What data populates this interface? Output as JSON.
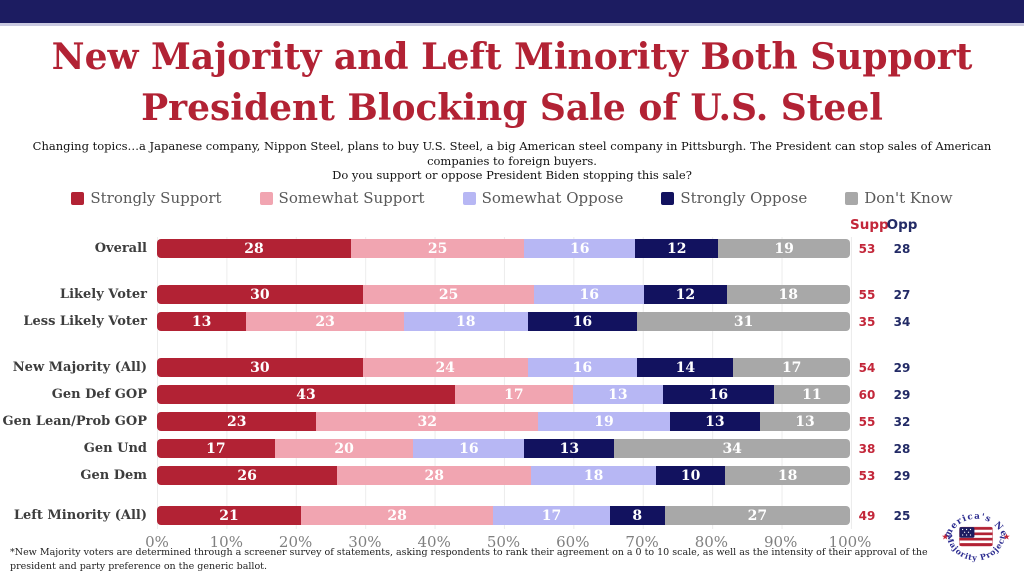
{
  "page": {
    "title_line1": "New Majority and Left Minority Both Support",
    "title_line2": "President Blocking Sale of U.S. Steel",
    "subtitle_line1": "Changing topics…a Japanese company, Nippon Steel, plans to buy U.S. Steel, a big American steel company in Pittsburgh. The President can stop sales of American companies to foreign buyers.",
    "subtitle_line2": "Do you support or oppose President Biden stopping this sale?",
    "footnote": "*New Majority voters are determined through a screener survey of statements, asking respondents to rank their agreement on a 0 to 10 scale, as well as the intensity  of their approval of the president and party preference on the generic ballot."
  },
  "colors": {
    "top_bar": "#1C1C61",
    "title_red": "#B22234",
    "supp_red": "#C3273A",
    "opp_navy": "#232B66",
    "grid_line": "#ECECEC"
  },
  "logo": {
    "arc_top": "America's New",
    "arc_bottom": "Majority Project",
    "star": "★"
  },
  "chart_data": {
    "type": "bar",
    "orientation": "horizontal-stacked",
    "title": "New Majority and Left Minority Both Support President Blocking Sale of U.S. Steel",
    "legend_position": "top",
    "grid": true,
    "xlim": [
      0,
      100
    ],
    "x_ticks": [
      "0%",
      "10%",
      "20%",
      "30%",
      "40%",
      "50%",
      "60%",
      "70%",
      "80%",
      "90%",
      "100%"
    ],
    "series": [
      "Strongly Support",
      "Somewhat Support",
      "Somewhat Oppose",
      "Strongly Oppose",
      "Don't Know"
    ],
    "series_colors": [
      "#B22234",
      "#F1A5B1",
      "#B7B7F4",
      "#12125F",
      "#A8A8A8"
    ],
    "columns_header": {
      "supp": "Supp",
      "opp": "Opp"
    },
    "rows": [
      {
        "category": "Overall",
        "values": [
          28,
          25,
          16,
          12,
          19
        ],
        "supp": 53,
        "opp": 28,
        "group": 0
      },
      {
        "category": "Likely Voter",
        "values": [
          30,
          25,
          16,
          12,
          18
        ],
        "supp": 55,
        "opp": 27,
        "group": 1
      },
      {
        "category": "Less Likely Voter",
        "values": [
          13,
          23,
          18,
          16,
          31
        ],
        "supp": 35,
        "opp": 34,
        "group": 1
      },
      {
        "category": "New Majority (All)",
        "values": [
          30,
          24,
          16,
          14,
          17
        ],
        "supp": 54,
        "opp": 29,
        "group": 2
      },
      {
        "category": "Gen Def GOP",
        "values": [
          43,
          17,
          13,
          16,
          11
        ],
        "supp": 60,
        "opp": 29,
        "group": 2
      },
      {
        "category": "Gen Lean/Prob GOP",
        "values": [
          23,
          32,
          19,
          13,
          13
        ],
        "supp": 55,
        "opp": 32,
        "group": 2
      },
      {
        "category": "Gen Und",
        "values": [
          17,
          20,
          16,
          13,
          34
        ],
        "supp": 38,
        "opp": 28,
        "group": 2
      },
      {
        "category": "Gen Dem",
        "values": [
          26,
          28,
          18,
          10,
          18
        ],
        "supp": 53,
        "opp": 29,
        "group": 2
      },
      {
        "category": "Left Minority (All)",
        "values": [
          21,
          28,
          17,
          8,
          27
        ],
        "supp": 49,
        "opp": 25,
        "group": 3
      }
    ]
  }
}
